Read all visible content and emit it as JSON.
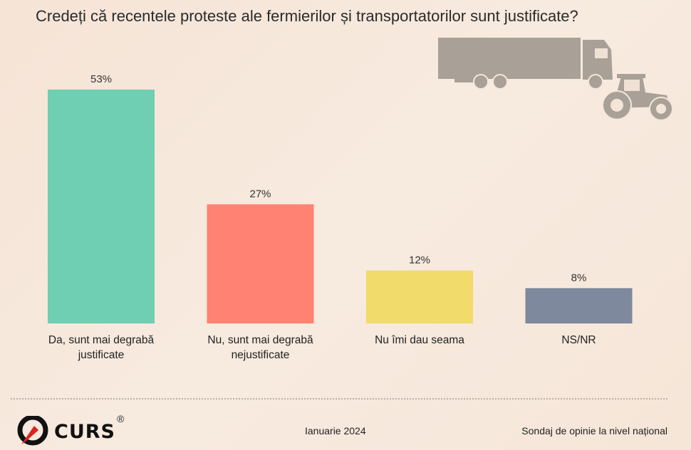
{
  "chart_data": {
    "type": "bar",
    "title": "Credeți că recentele proteste ale fermierilor și transportatorilor sunt justificate?",
    "categories": [
      [
        "Da, sunt mai degrabă",
        "justificate"
      ],
      [
        "Nu, sunt mai degrabă",
        "nejustificate"
      ],
      [
        "Nu îmi dau seama"
      ],
      [
        "NS/NR"
      ]
    ],
    "values": [
      53,
      27,
      12,
      8
    ],
    "labels": [
      "53%",
      "27%",
      "12%",
      "8%"
    ],
    "colors": [
      "#6fcfb3",
      "#ff8272",
      "#f0db6b",
      "#7e899d"
    ],
    "unit": "%",
    "ylim": [
      0,
      53
    ],
    "grid": false,
    "legend": "none"
  },
  "footer": {
    "logo": "CURS",
    "logo_reg": "®",
    "date": "Ianuarie 2024",
    "source": "Sondaj de opinie la nivel național"
  },
  "icons": [
    "truck-icon",
    "tractor-icon"
  ]
}
